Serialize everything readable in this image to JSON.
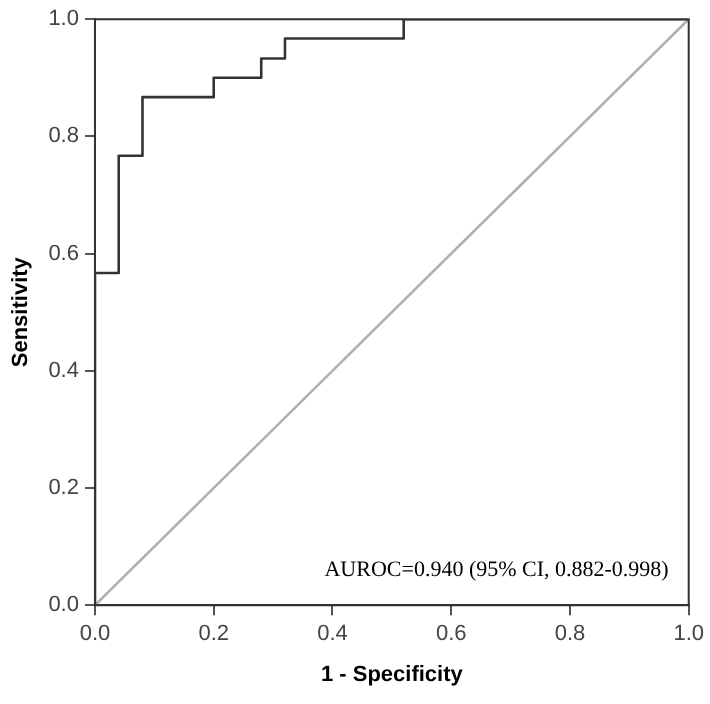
{
  "chart_data": {
    "type": "step",
    "xlabel": "1 - Specificity",
    "ylabel": "Sensitivity",
    "series": [
      {
        "color": "#333333",
        "x": [
          0,
          0,
          0.04,
          0.08,
          0.2,
          0.28,
          0.32,
          0.52,
          1
        ],
        "values": [
          0,
          0.567,
          0.767,
          0.867,
          0.9,
          0.933,
          0.967,
          1,
          1
        ]
      },
      {
        "type": "line",
        "color": "#b0b0b0",
        "x": [
          0,
          1
        ],
        "values": [
          0,
          1
        ]
      }
    ],
    "xlim": [
      0,
      1
    ],
    "ylim": [
      0,
      1
    ],
    "xticks": [
      {
        "value": 0,
        "label": "0.0"
      },
      0.2,
      0.4,
      0.6,
      0.8,
      {
        "value": 1,
        "label": "1.0"
      }
    ],
    "yticks": [
      {
        "value": 0,
        "label": "0.0"
      },
      0.2,
      0.4,
      0.6,
      0.8,
      {
        "value": 1,
        "label": "1.0"
      }
    ],
    "grid": false,
    "legend": false,
    "marker": "none",
    "annotations": [
      "AUROC=0.940 (95% CI, 0.882-0.998)"
    ]
  }
}
